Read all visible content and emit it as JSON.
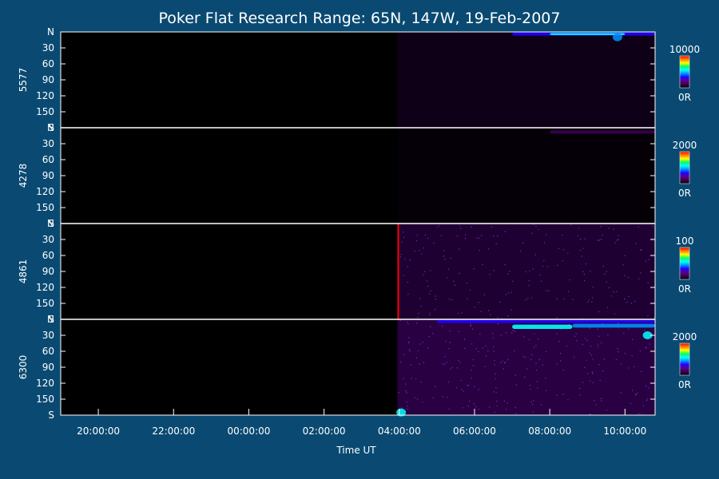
{
  "chart_data": {
    "type": "heatmap",
    "title": "Poker Flat Research Range: 65N, 147W, 19-Feb-2007",
    "xlabel": "Time UT",
    "x_range_hours": [
      19.0,
      34.8
    ],
    "x_ticks": [
      {
        "hour": 20,
        "label": "20:00:00"
      },
      {
        "hour": 22,
        "label": "22:00:00"
      },
      {
        "hour": 24,
        "label": "00:00:00"
      },
      {
        "hour": 26,
        "label": "02:00:00"
      },
      {
        "hour": 28,
        "label": "04:00:00"
      },
      {
        "hour": 30,
        "label": "06:00:00"
      },
      {
        "hour": 32,
        "label": "08:00:00"
      },
      {
        "hour": 34,
        "label": "10:00:00"
      }
    ],
    "y_range": [
      0,
      180
    ],
    "y_ticks": [
      {
        "value": 0,
        "label": "N"
      },
      {
        "value": 30,
        "label": "30"
      },
      {
        "value": 60,
        "label": "60"
      },
      {
        "value": 90,
        "label": "90"
      },
      {
        "value": 120,
        "label": "120"
      },
      {
        "value": 150,
        "label": "150"
      },
      {
        "value": 180,
        "label": "S"
      }
    ],
    "data_start_hour": 27.95,
    "colorscale": [
      "#000000",
      "#3c0050",
      "#5a0090",
      "#2000ff",
      "#0090ff",
      "#00ffff",
      "#00ff60",
      "#ffff00",
      "#ff8000",
      "#ff0000"
    ],
    "panels": [
      {
        "name": "5577",
        "cb_max_label": "10000",
        "cb_min_label": "0R",
        "background_level": 0.1,
        "features": [
          {
            "kind": "band",
            "t_start": 31.0,
            "t_end": 34.8,
            "y_center": 4,
            "width": 6,
            "level": 0.3
          },
          {
            "kind": "band",
            "t_start": 32.0,
            "t_end": 34.0,
            "y_center": 4,
            "width": 4,
            "level": 0.5
          },
          {
            "kind": "spot",
            "t": 33.8,
            "y": 10,
            "level": 0.45
          }
        ]
      },
      {
        "name": "4278",
        "cb_max_label": "2000",
        "cb_min_label": "0R",
        "background_level": 0.03,
        "features": [
          {
            "kind": "band",
            "t_start": 32.0,
            "t_end": 34.8,
            "y_center": 8,
            "width": 6,
            "level": 0.12
          }
        ]
      },
      {
        "name": "4861",
        "cb_max_label": "100",
        "cb_min_label": "0R",
        "background_level": 0.22,
        "features": [
          {
            "kind": "edge",
            "t": 27.95,
            "level": 0.95
          }
        ]
      },
      {
        "name": "6300",
        "cb_max_label": "2000",
        "cb_min_label": "0R",
        "background_level": 0.28,
        "features": [
          {
            "kind": "band",
            "t_start": 29.0,
            "t_end": 34.8,
            "y_center": 4,
            "width": 6,
            "level": 0.38
          },
          {
            "kind": "band",
            "t_start": 31.0,
            "t_end": 32.6,
            "y_center": 14,
            "width": 8,
            "level": 0.6
          },
          {
            "kind": "band",
            "t_start": 32.6,
            "t_end": 34.8,
            "y_center": 12,
            "width": 7,
            "level": 0.48
          },
          {
            "kind": "spot",
            "t": 34.6,
            "y": 30,
            "level": 0.55
          },
          {
            "kind": "spot",
            "t": 28.05,
            "y": 175,
            "level": 0.6
          }
        ]
      }
    ]
  }
}
